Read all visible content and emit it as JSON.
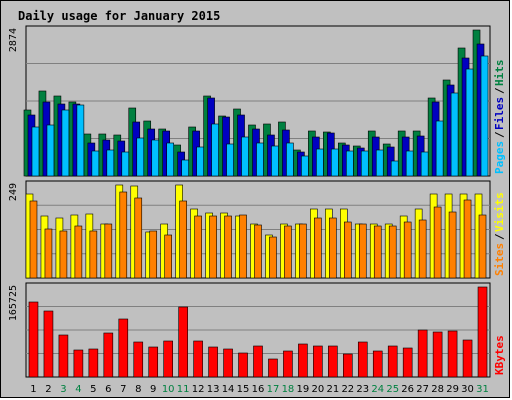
{
  "title": "Daily usage for January 2015",
  "chart_data": [
    {
      "type": "bar",
      "panel": "hits-files-pages",
      "categories": [
        "1",
        "2",
        "3",
        "4",
        "5",
        "6",
        "7",
        "8",
        "9",
        "10",
        "11",
        "12",
        "13",
        "14",
        "15",
        "16",
        "17",
        "18",
        "19",
        "20",
        "21",
        "22",
        "23",
        "24",
        "25",
        "26",
        "27",
        "28",
        "29",
        "30",
        "31"
      ],
      "weekend_days": [
        "3",
        "4",
        "10",
        "11",
        "17",
        "18",
        "24",
        "25",
        "31"
      ],
      "ylabel_max": "2874",
      "ylim": [
        0,
        2874
      ],
      "series": [
        {
          "name": "Hits",
          "color": "#008040",
          "values": [
            1300,
            1680,
            1570,
            1460,
            820,
            820,
            800,
            1330,
            1080,
            920,
            620,
            960,
            1580,
            1190,
            1310,
            1000,
            1020,
            1060,
            520,
            880,
            860,
            640,
            590,
            880,
            630,
            890,
            880,
            1540,
            1880,
            2510,
            2874
          ]
        },
        {
          "name": "Files",
          "color": "#0000c0",
          "values": [
            1200,
            1450,
            1420,
            1420,
            650,
            710,
            680,
            1060,
            920,
            880,
            470,
            880,
            1540,
            1170,
            1200,
            930,
            810,
            900,
            480,
            760,
            840,
            610,
            560,
            760,
            570,
            770,
            780,
            1460,
            1800,
            2320,
            2600
          ]
        },
        {
          "name": "Pages",
          "color": "#00c0ff",
          "values": [
            960,
            1000,
            1300,
            1400,
            500,
            510,
            480,
            740,
            700,
            650,
            310,
            580,
            1030,
            630,
            770,
            650,
            600,
            640,
            400,
            530,
            530,
            500,
            500,
            510,
            300,
            490,
            480,
            1080,
            1640,
            2100,
            2360
          ]
        }
      ],
      "side_label": [
        "Pages",
        "Files",
        "Hits"
      ]
    },
    {
      "type": "bar",
      "panel": "visits-sites",
      "categories": [
        "1",
        "2",
        "3",
        "4",
        "5",
        "6",
        "7",
        "8",
        "9",
        "10",
        "11",
        "12",
        "13",
        "14",
        "15",
        "16",
        "17",
        "18",
        "19",
        "20",
        "21",
        "22",
        "23",
        "24",
        "25",
        "26",
        "27",
        "28",
        "29",
        "30",
        "31"
      ],
      "ylabel_max": "249",
      "ylim": [
        0,
        249
      ],
      "series": [
        {
          "name": "Visits",
          "color": "#ffff00",
          "values": [
            225,
            165,
            160,
            170,
            172,
            145,
            249,
            247,
            123,
            145,
            249,
            185,
            175,
            175,
            165,
            145,
            115,
            145,
            145,
            185,
            185,
            185,
            145,
            145,
            145,
            165,
            185,
            225,
            225,
            225,
            225
          ]
        },
        {
          "name": "Sites",
          "color": "#ff8000",
          "values": [
            205,
            130,
            125,
            140,
            125,
            145,
            230,
            215,
            126,
            114,
            205,
            165,
            165,
            165,
            170,
            142,
            110,
            140,
            145,
            160,
            160,
            150,
            144,
            140,
            140,
            150,
            155,
            190,
            176,
            210,
            170
          ]
        }
      ],
      "side_label": [
        "Sites",
        "Visits"
      ]
    },
    {
      "type": "bar",
      "panel": "kbytes",
      "categories": [
        "1",
        "2",
        "3",
        "4",
        "5",
        "6",
        "7",
        "8",
        "9",
        "10",
        "11",
        "12",
        "13",
        "14",
        "15",
        "16",
        "17",
        "18",
        "19",
        "20",
        "21",
        "22",
        "23",
        "24",
        "25",
        "26",
        "27",
        "28",
        "29",
        "30",
        "31"
      ],
      "ylabel_max": "165725",
      "ylim": [
        0,
        165725
      ],
      "series": [
        {
          "name": "KBytes",
          "color": "#ff0000",
          "values": [
            139000,
            122000,
            77000,
            49000,
            52000,
            81000,
            107000,
            64000,
            55000,
            67000,
            129000,
            66000,
            55000,
            51000,
            45000,
            58000,
            34000,
            47000,
            61000,
            57000,
            58000,
            43000,
            64000,
            48000,
            58000,
            54000,
            86000,
            83000,
            84000,
            68000,
            165725
          ]
        }
      ],
      "side_label": [
        "KBytes"
      ]
    }
  ],
  "colors": {
    "background": "#c0c0c0",
    "title": "#0000c0",
    "weekday_tick": "#000000",
    "weekend_tick": "#008040",
    "gridline": "#808080",
    "bar_outline": "#000000"
  }
}
